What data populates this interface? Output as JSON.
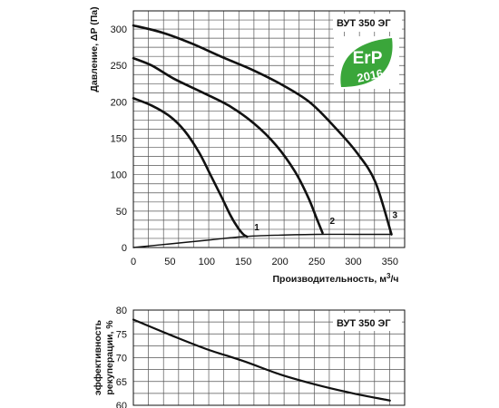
{
  "chart_data": [
    {
      "type": "line",
      "model_label": "ВУТ 350 ЭГ",
      "badge": {
        "text": "ErP",
        "year": "2016",
        "color": "#3aa63a"
      },
      "xlabel": "Производительность, м³/ч",
      "ylabel": "Давление, ΔP (Па)",
      "xlim": [
        0,
        370
      ],
      "ylim": [
        0,
        325
      ],
      "xticks": [
        0,
        50,
        100,
        150,
        200,
        250,
        300,
        350
      ],
      "yticks": [
        0,
        50,
        100,
        150,
        200,
        250,
        300
      ],
      "grid": true,
      "series": [
        {
          "name": "1",
          "x": [
            0,
            25,
            50,
            70,
            90,
            105,
            120,
            132,
            142,
            150,
            155
          ],
          "y": [
            205,
            195,
            180,
            160,
            130,
            100,
            70,
            45,
            28,
            18,
            15
          ]
        },
        {
          "name": "2",
          "x": [
            0,
            25,
            55,
            90,
            130,
            165,
            195,
            220,
            238,
            250,
            258
          ],
          "y": [
            260,
            250,
            232,
            215,
            195,
            170,
            140,
            105,
            70,
            40,
            20
          ]
        },
        {
          "name": "3",
          "x": [
            0,
            40,
            80,
            120,
            160,
            200,
            240,
            275,
            305,
            330,
            352
          ],
          "y": [
            305,
            295,
            280,
            262,
            245,
            225,
            200,
            165,
            130,
            90,
            18
          ]
        },
        {
          "name": "",
          "x": [
            0,
            50,
            100,
            150,
            200,
            250,
            300,
            352
          ],
          "y": [
            0,
            5,
            10,
            15,
            17,
            18,
            18,
            18
          ]
        }
      ],
      "curve_labels": [
        "1",
        "2",
        "3"
      ]
    },
    {
      "type": "line",
      "model_label": "ВУТ 350 ЭГ",
      "ylabel": "эффективность рекуперации, %",
      "xlim": [
        0,
        370
      ],
      "ylim": [
        60,
        80
      ],
      "yticks": [
        60,
        65,
        70,
        75,
        80
      ],
      "grid": true,
      "series": [
        {
          "name": "",
          "x": [
            0,
            50,
            100,
            150,
            200,
            250,
            300,
            350
          ],
          "y": [
            78,
            74.8,
            71.8,
            69.3,
            66.5,
            64.3,
            62.5,
            61
          ]
        }
      ]
    }
  ]
}
